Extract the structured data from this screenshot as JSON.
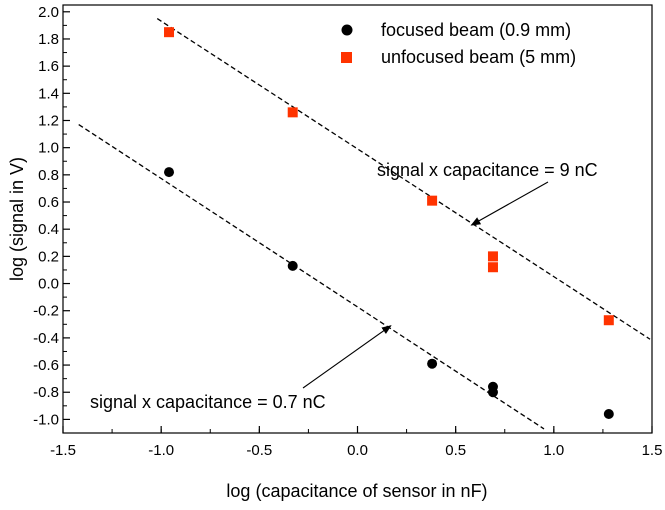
{
  "chart_data": {
    "type": "scatter",
    "xlabel": "log (capacitance of sensor in nF)",
    "ylabel": "log (signal in V)",
    "xlim": [
      -1.5,
      1.5
    ],
    "ylim": [
      -1.1,
      2.05
    ],
    "x_ticks": [
      -1.5,
      -1.0,
      -0.5,
      0.0,
      0.5,
      1.0,
      1.5
    ],
    "x_tick_labels": [
      "-1.5",
      "-1.0",
      "-0.5",
      "0.0",
      "0.5",
      "1.0",
      "1.5"
    ],
    "y_ticks": [
      -1.0,
      -0.8,
      -0.6,
      -0.4,
      -0.2,
      0.0,
      0.2,
      0.4,
      0.6,
      0.8,
      1.0,
      1.2,
      1.4,
      1.6,
      1.8,
      2.0
    ],
    "y_tick_labels": [
      "-1.0",
      "-0.8",
      "-0.6",
      "-0.4",
      "-0.2",
      "0.0",
      "0.2",
      "0.4",
      "0.6",
      "0.8",
      "1.0",
      "1.2",
      "1.4",
      "1.6",
      "1.8",
      "2.0"
    ],
    "legend_position": "top-right",
    "series": [
      {
        "name": "focused beam  (0.9 mm)",
        "marker": "circle",
        "color": "#000000",
        "points": [
          {
            "x": -0.96,
            "y": 0.82
          },
          {
            "x": -0.33,
            "y": 0.13
          },
          {
            "x": 0.38,
            "y": -0.59
          },
          {
            "x": 0.69,
            "y": -0.76
          },
          {
            "x": 0.69,
            "y": -0.8
          },
          {
            "x": 1.28,
            "y": -0.96
          }
        ]
      },
      {
        "name": "unfocused beam  (5 mm)",
        "marker": "square",
        "color": "#ff3300",
        "points": [
          {
            "x": -0.96,
            "y": 1.85
          },
          {
            "x": -0.33,
            "y": 1.26
          },
          {
            "x": 0.38,
            "y": 0.61
          },
          {
            "x": 0.69,
            "y": 0.2
          },
          {
            "x": 0.69,
            "y": 0.12
          },
          {
            "x": 1.28,
            "y": -0.27
          }
        ]
      }
    ],
    "fit_lines": [
      {
        "x": [
          -1.02,
          1.49
        ],
        "y": [
          1.95,
          -0.41
        ]
      },
      {
        "x": [
          -1.42,
          0.95
        ],
        "y": [
          1.17,
          -1.07
        ]
      }
    ],
    "annotations": [
      {
        "text": "signal x capacitance = 9 nC",
        "arrow_to": {
          "x": 0.58,
          "y": 0.43
        }
      },
      {
        "text": "signal x capacitance = 0.7 nC",
        "arrow_to": {
          "x": 0.17,
          "y": -0.31
        }
      }
    ]
  }
}
